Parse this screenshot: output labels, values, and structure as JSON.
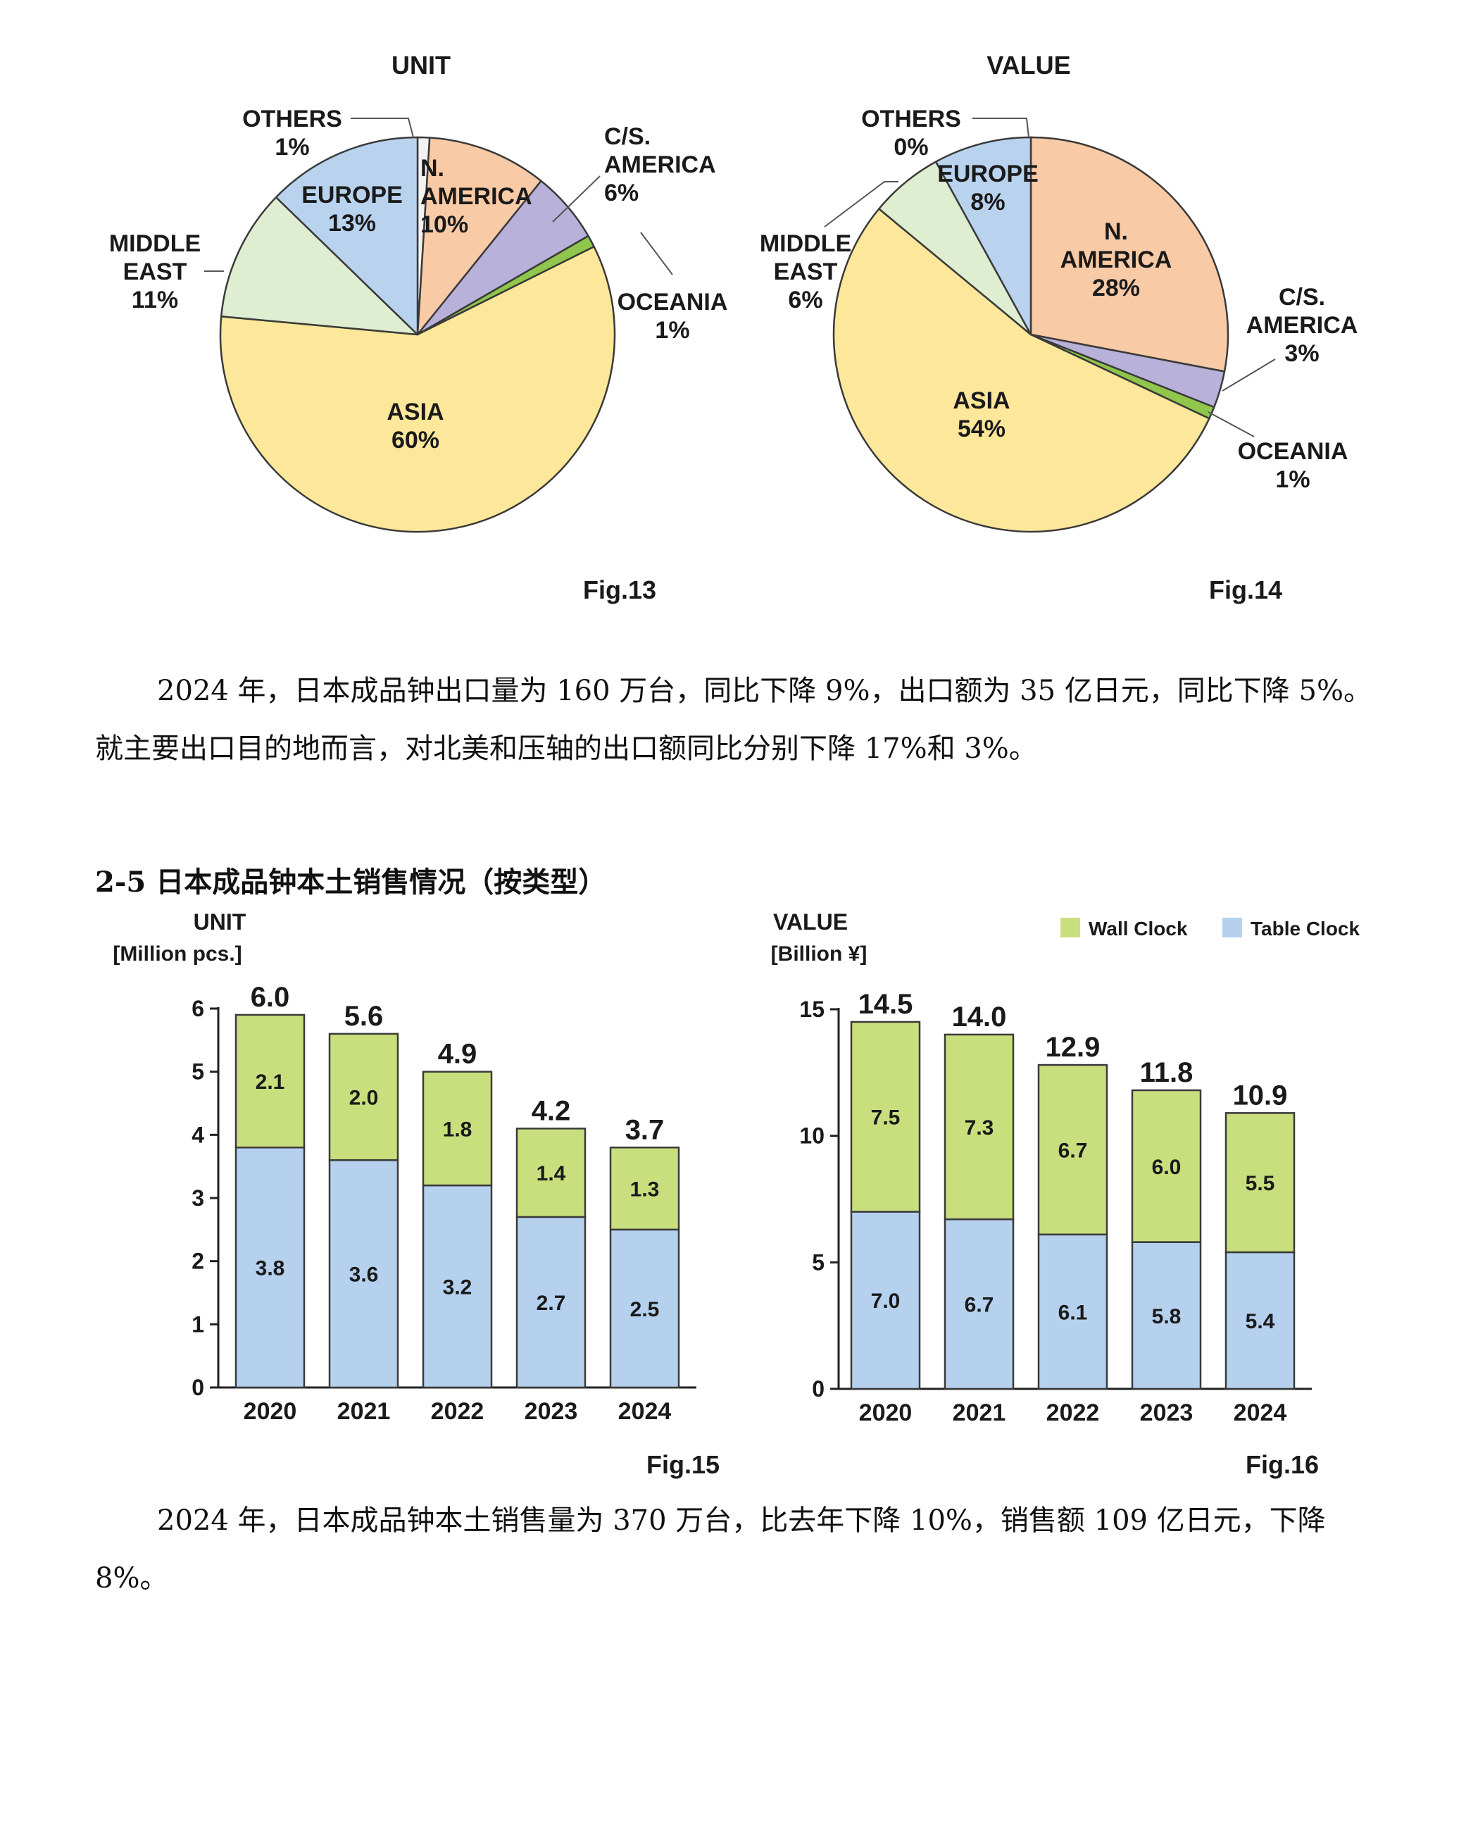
{
  "colors": {
    "asia": "#fde79a",
    "middle_east": "#dfedd0",
    "europe": "#b9d3ef",
    "others": "#f2f2f2",
    "n_america": "#f9caa6",
    "cs_america": "#b8b1d9",
    "oceania": "#8fc64b",
    "wall_clock": "#c9df7e",
    "table_clock": "#b5d1ee",
    "outline": "#3a3a3a"
  },
  "figures": {
    "fig13_caption": "Fig.13",
    "fig14_caption": "Fig.14",
    "fig15_caption": "Fig.15",
    "fig16_caption": "Fig.16"
  },
  "text": {
    "para1_line1": "2024 年，日本成品钟出口量为 160 万台，同比下降 9%，出口额为 35 亿日元，同比下降 5%。",
    "para1_line2": "就主要出口目的地而言，对北美和压轴的出口额同比分别下降 17%和 3%。",
    "heading": "2-5 日本成品钟本土销售情况（按类型）",
    "para2_line1": "2024 年，日本成品钟本土销售量为 370 万台，比去年下降 10%，销售额 109 亿日元，下降",
    "para2_line2": "8%。"
  },
  "chart_data": [
    {
      "type": "pie",
      "title": "UNIT",
      "slices": [
        {
          "label": [
            "OTHERS"
          ],
          "value": 1,
          "pct_label": "1%",
          "color_key": "others"
        },
        {
          "label": [
            "N.",
            "AMERICA"
          ],
          "value": 10,
          "pct_label": "10%",
          "color_key": "n_america"
        },
        {
          "label": [
            "C/S.",
            "AMERICA"
          ],
          "value": 6,
          "pct_label": "6%",
          "color_key": "cs_america"
        },
        {
          "label": [
            "OCEANIA"
          ],
          "value": 1,
          "pct_label": "1%",
          "color_key": "oceania"
        },
        {
          "label": [
            "ASIA"
          ],
          "value": 60,
          "pct_label": "60%",
          "color_key": "asia"
        },
        {
          "label": [
            "MIDDLE",
            "EAST"
          ],
          "value": 11,
          "pct_label": "11%",
          "color_key": "middle_east"
        },
        {
          "label": [
            "EUROPE"
          ],
          "value": 13,
          "pct_label": "13%",
          "color_key": "europe"
        }
      ]
    },
    {
      "type": "pie",
      "title": "VALUE",
      "slices": [
        {
          "label": [
            "OTHERS"
          ],
          "value": 0,
          "pct_label": "0%",
          "color_key": "others"
        },
        {
          "label": [
            "N.",
            "AMERICA"
          ],
          "value": 28,
          "pct_label": "28%",
          "color_key": "n_america"
        },
        {
          "label": [
            "C/S.",
            "AMERICA"
          ],
          "value": 3,
          "pct_label": "3%",
          "color_key": "cs_america"
        },
        {
          "label": [
            "OCEANIA"
          ],
          "value": 1,
          "pct_label": "1%",
          "color_key": "oceania"
        },
        {
          "label": [
            "ASIA"
          ],
          "value": 54,
          "pct_label": "54%",
          "color_key": "asia"
        },
        {
          "label": [
            "MIDDLE",
            "EAST"
          ],
          "value": 6,
          "pct_label": "6%",
          "color_key": "middle_east"
        },
        {
          "label": [
            "EUROPE"
          ],
          "value": 8,
          "pct_label": "8%",
          "color_key": "europe"
        }
      ]
    },
    {
      "type": "bar",
      "stacked": true,
      "title": "UNIT",
      "ylabel": "[Million pcs.]",
      "categories": [
        "2020",
        "2021",
        "2022",
        "2023",
        "2024"
      ],
      "ylim": [
        0,
        6
      ],
      "yticks": [
        0,
        1,
        2,
        3,
        4,
        5,
        6
      ],
      "series": [
        {
          "name": "Table Clock",
          "color_key": "table_clock",
          "values": [
            3.8,
            3.6,
            3.2,
            2.7,
            2.5
          ],
          "labels": [
            "3.8",
            "3.6",
            "3.2",
            "2.7",
            "2.5"
          ]
        },
        {
          "name": "Wall Clock",
          "color_key": "wall_clock",
          "values": [
            2.1,
            2.0,
            1.8,
            1.4,
            1.3
          ],
          "labels": [
            "2.1",
            "2.0",
            "1.8",
            "1.4",
            "1.3"
          ]
        }
      ],
      "totals": [
        "6.0",
        "5.6",
        "4.9",
        "4.2",
        "3.7"
      ]
    },
    {
      "type": "bar",
      "stacked": true,
      "title": "VALUE",
      "ylabel": "[Billion ¥]",
      "categories": [
        "2020",
        "2021",
        "2022",
        "2023",
        "2024"
      ],
      "ylim": [
        0,
        15
      ],
      "yticks": [
        0,
        5,
        10,
        15
      ],
      "legend": [
        "Wall Clock",
        "Table Clock"
      ],
      "legend_position": "top-right",
      "series": [
        {
          "name": "Table Clock",
          "color_key": "table_clock",
          "values": [
            7.0,
            6.7,
            6.1,
            5.8,
            5.4
          ],
          "labels": [
            "7.0",
            "6.7",
            "6.1",
            "5.8",
            "5.4"
          ]
        },
        {
          "name": "Wall Clock",
          "color_key": "wall_clock",
          "values": [
            7.5,
            7.3,
            6.7,
            6.0,
            5.5
          ],
          "labels": [
            "7.5",
            "7.3",
            "6.7",
            "6.0",
            "5.5"
          ]
        }
      ],
      "totals": [
        "14.5",
        "14.0",
        "12.9",
        "11.8",
        "10.9"
      ]
    }
  ]
}
